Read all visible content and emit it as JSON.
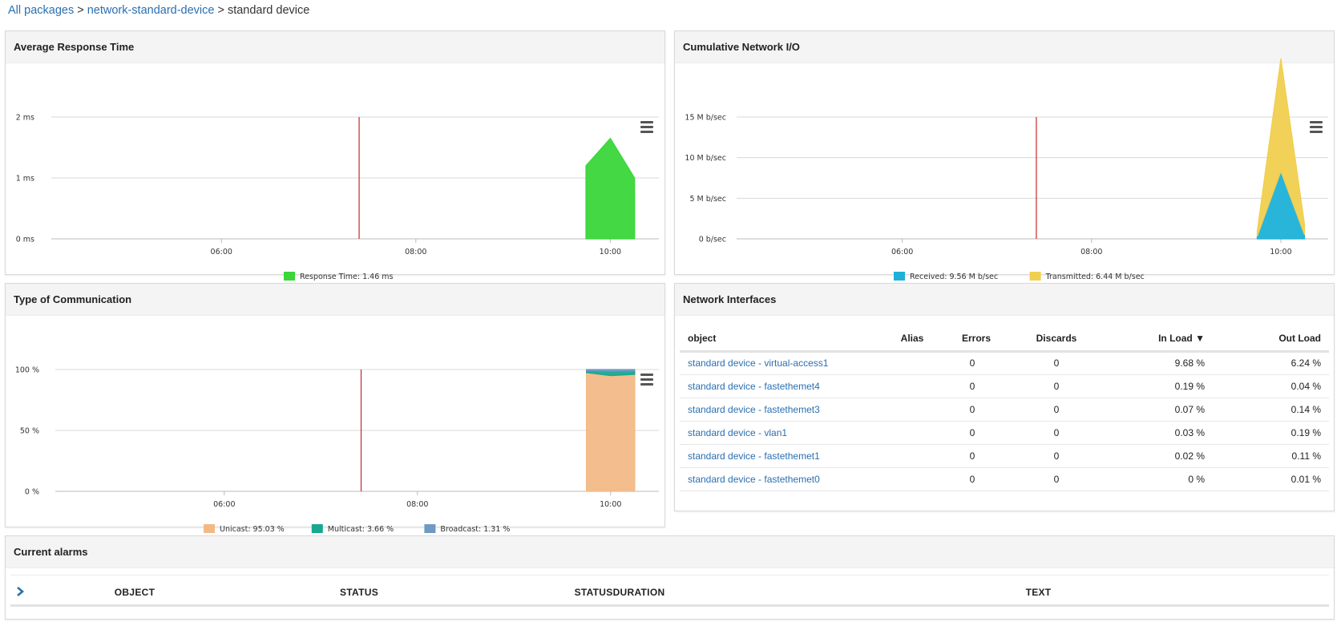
{
  "breadcrumb": {
    "items": [
      "All packages",
      "network-standard-device"
    ],
    "separator": ">",
    "current": "standard device"
  },
  "panels": {
    "response_time": {
      "title": "Average Response Time"
    },
    "network_io": {
      "title": "Cumulative Network I/O"
    },
    "communication": {
      "title": "Type of Communication"
    },
    "interfaces": {
      "title": "Network Interfaces"
    },
    "alarms": {
      "title": "Current alarms"
    }
  },
  "chart_data": [
    {
      "id": "response_time",
      "type": "area",
      "title": "Average Response Time",
      "x_ticks": [
        "06:00",
        "08:00",
        "10:00"
      ],
      "y_ticks": [
        "0 ms",
        "1 ms",
        "2 ms"
      ],
      "ylim": [
        0,
        2
      ],
      "marker_time": "07:25",
      "series": [
        {
          "name": "Response Time",
          "legend": "Response Time: 1.46 ms",
          "color": "#3ad63a",
          "points": [
            [
              "09:45",
              1.2
            ],
            [
              "10:00",
              1.65
            ],
            [
              "10:15",
              1.0
            ]
          ]
        }
      ]
    },
    {
      "id": "network_io",
      "type": "area",
      "title": "Cumulative Network I/O",
      "x_ticks": [
        "06:00",
        "08:00",
        "10:00"
      ],
      "y_ticks": [
        "0 b/sec",
        "5 M b/sec",
        "10 M b/sec",
        "15 M b/sec"
      ],
      "ylim": [
        0,
        15
      ],
      "marker_time": "07:25",
      "stacked": true,
      "series": [
        {
          "name": "Received",
          "legend": "Received: 9.56 M b/sec",
          "color": "#1eb1d8",
          "points": [
            [
              "09:45",
              0.3
            ],
            [
              "10:00",
              8.3
            ],
            [
              "10:15",
              0.5
            ]
          ]
        },
        {
          "name": "Transmitted",
          "legend": "Transmitted: 6.44 M b/sec",
          "color": "#f0cf4f",
          "points": [
            [
              "09:45",
              0.6
            ],
            [
              "10:00",
              13.9
            ],
            [
              "10:15",
              1.3
            ]
          ]
        }
      ]
    },
    {
      "id": "communication",
      "type": "area",
      "title": "Type of Communication",
      "x_ticks": [
        "06:00",
        "08:00",
        "10:00"
      ],
      "y_ticks": [
        "0 %",
        "50 %",
        "100 %"
      ],
      "ylim": [
        0,
        100
      ],
      "marker_time": "07:25",
      "stacked": true,
      "series": [
        {
          "name": "Unicast",
          "legend": "Unicast: 95.03 %",
          "color": "#f2b987",
          "points": [
            [
              "09:45",
              97.5
            ],
            [
              "10:00",
              95.0
            ],
            [
              "10:15",
              96.0
            ]
          ]
        },
        {
          "name": "Multicast",
          "legend": "Multicast: 3.66 %",
          "color": "#17a88f",
          "points": [
            [
              "09:45",
              1.5
            ],
            [
              "10:00",
              3.66
            ],
            [
              "10:15",
              2.8
            ]
          ]
        },
        {
          "name": "Broadcast",
          "legend": "Broadcast: 1.31 %",
          "color": "#6f9ac4",
          "points": [
            [
              "09:45",
              1.0
            ],
            [
              "10:00",
              1.31
            ],
            [
              "10:15",
              1.2
            ]
          ]
        }
      ]
    }
  ],
  "interfaces": {
    "columns": {
      "object": "object",
      "alias": "Alias",
      "errors": "Errors",
      "discards": "Discards",
      "in_load": "In Load",
      "out_load": "Out Load"
    },
    "sort_indicator": "▼",
    "rows": [
      {
        "object": "standard device - virtual-access1",
        "alias": "",
        "errors": "0",
        "discards": "0",
        "in_load": "9.68 %",
        "out_load": "6.24 %"
      },
      {
        "object": "standard device - fastethemet4",
        "alias": "",
        "errors": "0",
        "discards": "0",
        "in_load": "0.19 %",
        "out_load": "0.04 %"
      },
      {
        "object": "standard device - fastethemet3",
        "alias": "",
        "errors": "0",
        "discards": "0",
        "in_load": "0.07 %",
        "out_load": "0.14 %"
      },
      {
        "object": "standard device - vlan1",
        "alias": "",
        "errors": "0",
        "discards": "0",
        "in_load": "0.03 %",
        "out_load": "0.19 %"
      },
      {
        "object": "standard device - fastethemet1",
        "alias": "",
        "errors": "0",
        "discards": "0",
        "in_load": "0.02 %",
        "out_load": "0.11 %"
      },
      {
        "object": "standard device - fastethemet0",
        "alias": "",
        "errors": "0",
        "discards": "0",
        "in_load": "0 %",
        "out_load": "0.01 %"
      }
    ]
  },
  "alarms": {
    "expand_icon": "chevron-right-icon",
    "columns": {
      "object": "OBJECT",
      "status": "STATUS",
      "status_duration": "STATUSDURATION",
      "text": "TEXT"
    }
  },
  "icons": {
    "menu": "hamburger-menu-icon"
  },
  "colors": {
    "link": "#2a6fb0",
    "marker_line": "#c62828",
    "grid": "#d8d8d8"
  }
}
